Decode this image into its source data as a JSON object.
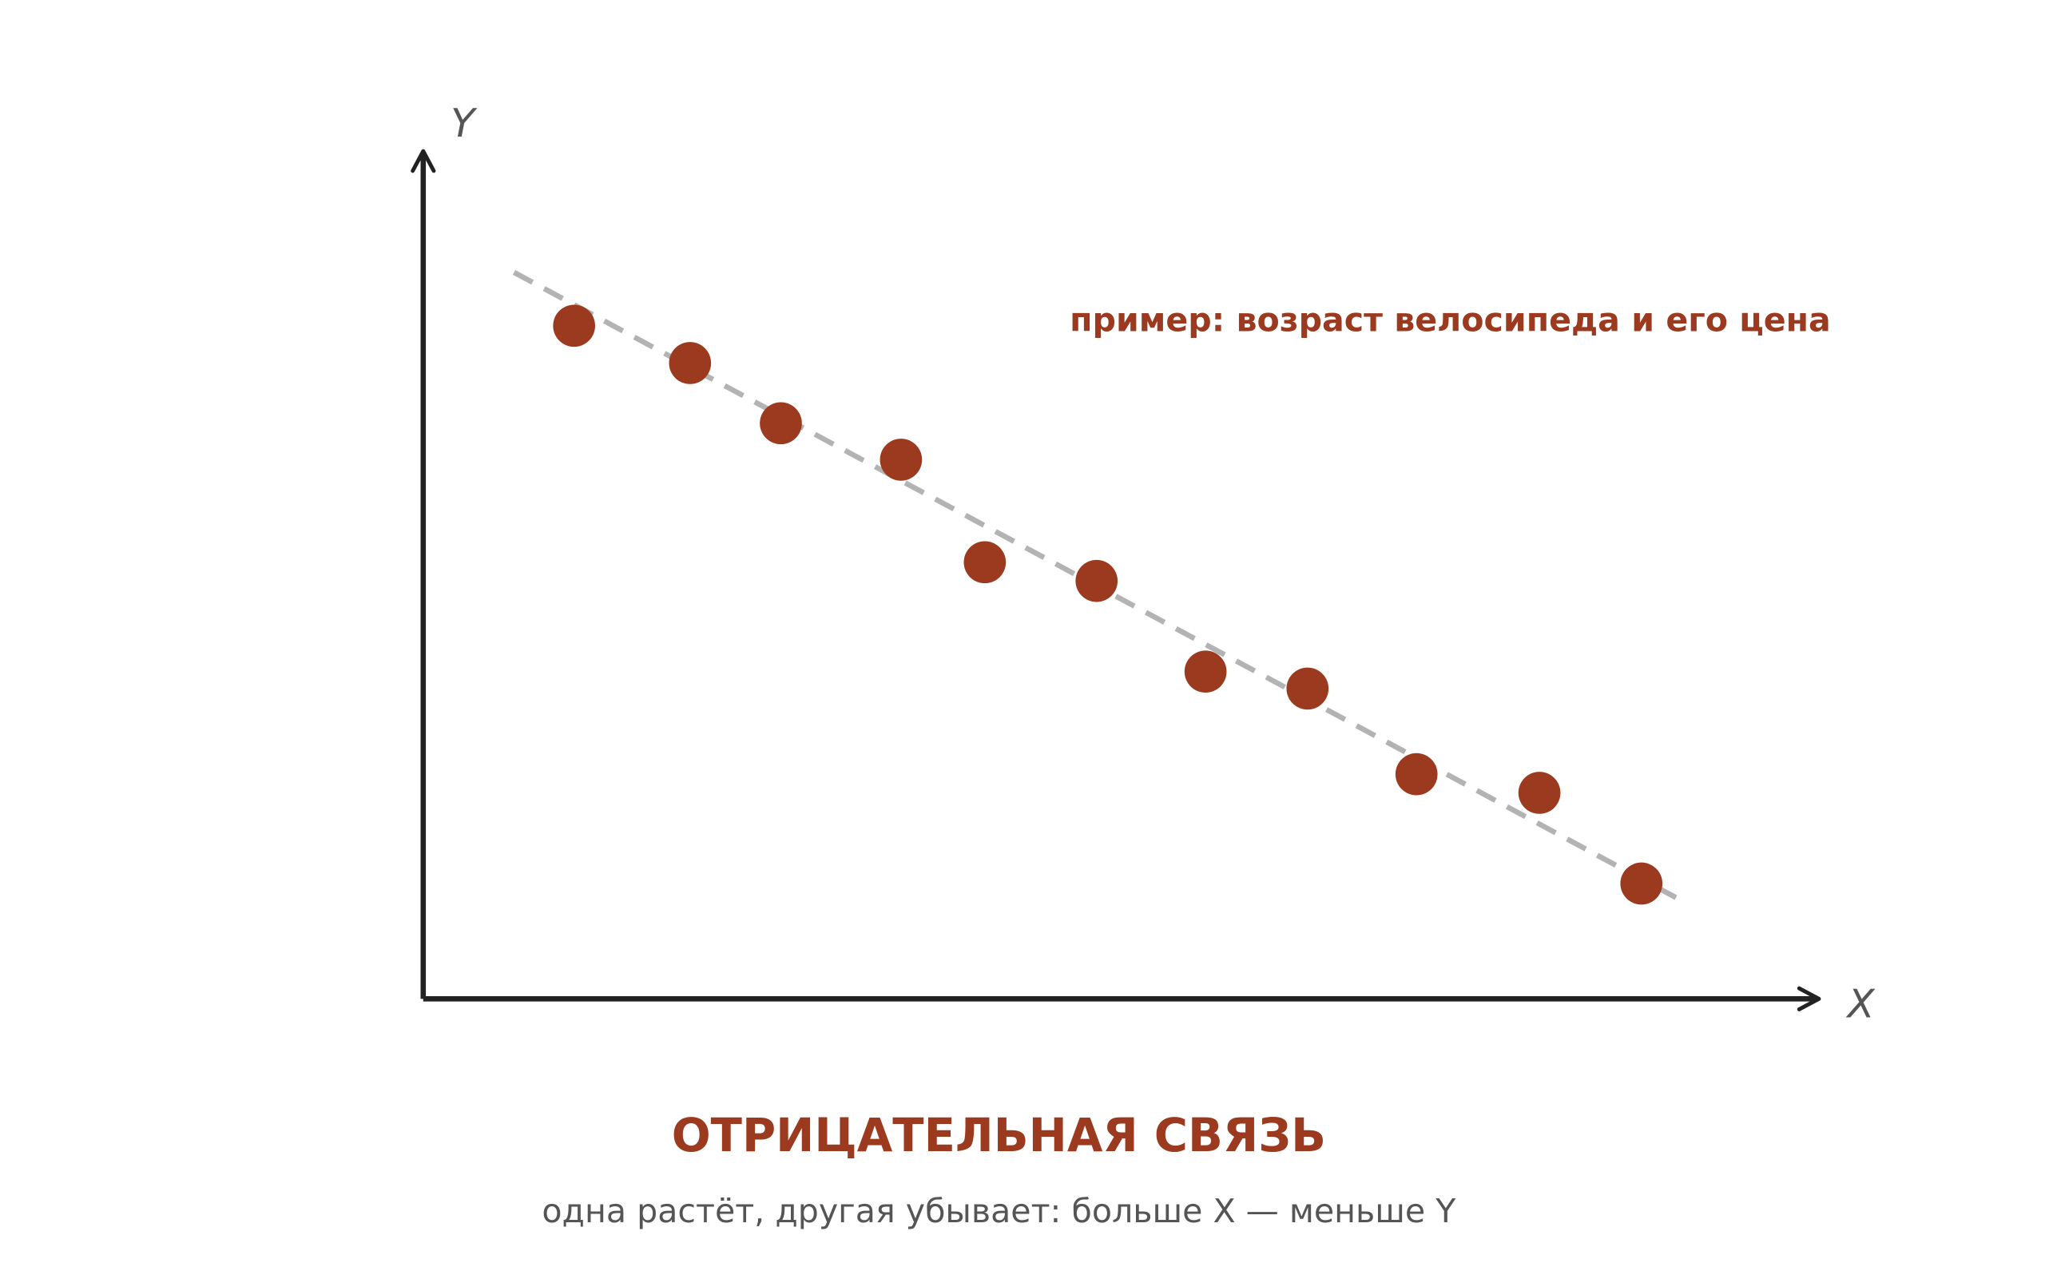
{
  "chart_data": {
    "type": "scatter",
    "title": "ОТРИЦАТЕЛЬНАЯ СВЯЗЬ",
    "subtitle": "одна растёт, другая убывает: больше X — меньше Y",
    "annotation": "пример: возраст велосипеда и его цена",
    "x_label": "X",
    "y_label": "Y",
    "xlim": [
      0,
      100
    ],
    "ylim": [
      0,
      100
    ],
    "color": "#9b3a1e",
    "x": [
      10.8,
      19.1,
      25.6,
      34.2,
      40.2,
      48.2,
      56.0,
      63.3,
      71.1,
      79.9,
      87.2
    ],
    "values": [
      79.4,
      75.0,
      67.9,
      63.6,
      51.5,
      49.3,
      38.6,
      36.6,
      26.5,
      24.3,
      13.6
    ],
    "trend_line": {
      "color": "#b3b3b3",
      "x": [
        6.5,
        90.4
      ],
      "values": [
        85.7,
        11.3
      ]
    }
  }
}
